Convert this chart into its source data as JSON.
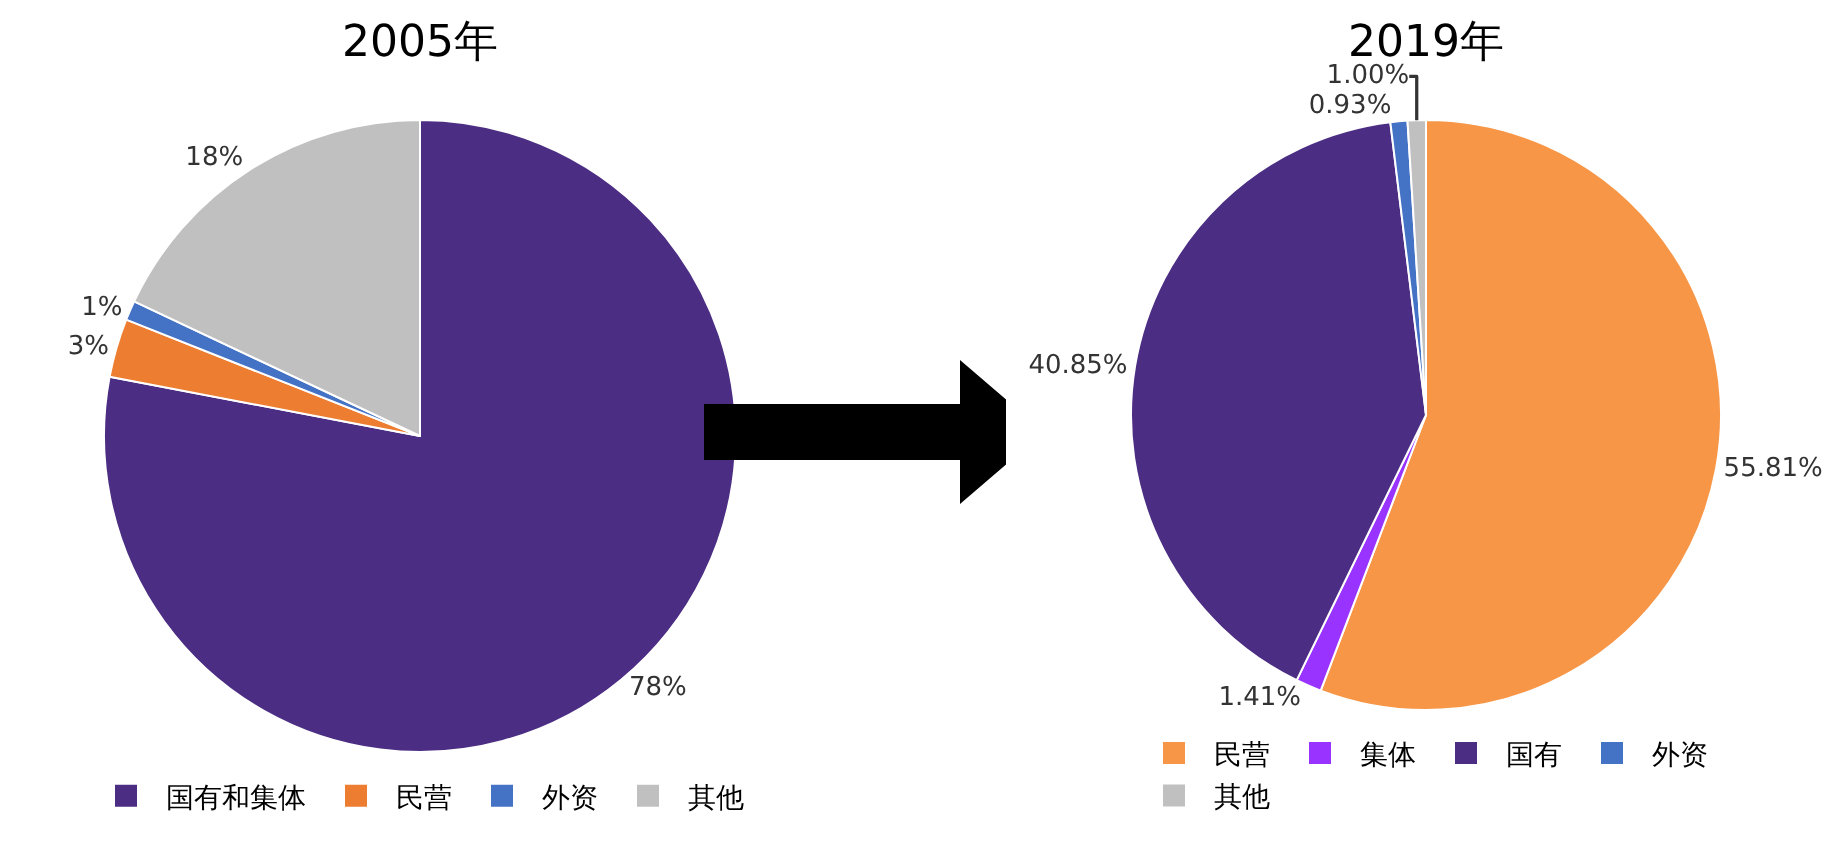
{
  "chart_data": [
    {
      "type": "pie",
      "title": "2005年",
      "categories": [
        "国有和集体",
        "民营",
        "外资",
        "其他"
      ],
      "values": [
        78,
        3,
        1,
        18
      ],
      "value_labels": [
        "78%",
        "3%",
        "1%",
        "18%"
      ],
      "colors": [
        "#4b2d83",
        "#ed7d31",
        "#4472c4",
        "#c0c0c0"
      ],
      "legend": "bottom"
    },
    {
      "type": "pie",
      "title": "2019年",
      "categories": [
        "民营",
        "集体",
        "国有",
        "外资",
        "其他"
      ],
      "values": [
        55.81,
        1.41,
        40.85,
        0.93,
        1.0
      ],
      "value_labels": [
        "55.81%",
        "1.41%",
        "40.85%",
        "0.93%",
        "1.00%"
      ],
      "colors": [
        "#f79646",
        "#9933ff",
        "#4b2d83",
        "#4472c4",
        "#c0c0c0"
      ],
      "legend": "bottom"
    }
  ]
}
